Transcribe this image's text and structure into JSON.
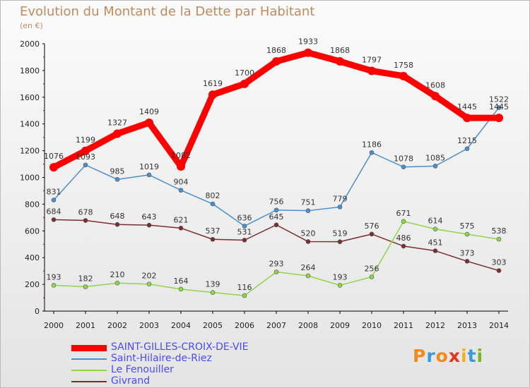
{
  "title": "Evolution du Montant de la Dette par Habitant",
  "subtitle": "(en €)",
  "logo": {
    "letters": [
      "P",
      "r",
      "o",
      "x",
      "i",
      "t",
      "i"
    ],
    "colors": [
      "#f08a1c",
      "#3a9ad9",
      "#f08a1c",
      "#e5331b",
      "#f0b21c",
      "#3a9ad9",
      "#7ab51d"
    ]
  },
  "chart_data": {
    "type": "line",
    "x": [
      "2000",
      "2001",
      "2002",
      "2003",
      "2004",
      "2005",
      "2006",
      "2007",
      "2008",
      "2009",
      "2010",
      "2011",
      "2012",
      "2013",
      "2014"
    ],
    "ylim": [
      0,
      2000
    ],
    "yticks": [
      0,
      200,
      400,
      600,
      800,
      1000,
      1200,
      1400,
      1600,
      1800,
      2000
    ],
    "grid": false,
    "legend_position": "bottom-left",
    "series": [
      {
        "name": "SAINT-GILLES-CROIX-DE-VIE",
        "color": "#ff0000",
        "emphasis": true,
        "values": [
          1076,
          1199,
          1327,
          1409,
          1082,
          1619,
          1700,
          1868,
          1933,
          1868,
          1797,
          1758,
          1608,
          1445,
          1445
        ]
      },
      {
        "name": "Saint-Hilaire-de-Riez",
        "color": "#4a90d0",
        "emphasis": false,
        "values": [
          831,
          1093,
          985,
          1019,
          904,
          802,
          636,
          756,
          751,
          779,
          1186,
          1078,
          1085,
          1215,
          1522
        ]
      },
      {
        "name": "Le Fenouiller",
        "color": "#8fd64a",
        "emphasis": false,
        "values": [
          193,
          182,
          210,
          202,
          164,
          139,
          116,
          293,
          264,
          193,
          256,
          671,
          614,
          575,
          538
        ]
      },
      {
        "name": "Givrand",
        "color": "#7a2e2e",
        "emphasis": false,
        "values": [
          684,
          678,
          648,
          643,
          621,
          537,
          531,
          645,
          520,
          519,
          576,
          486,
          451,
          373,
          303
        ]
      }
    ]
  }
}
